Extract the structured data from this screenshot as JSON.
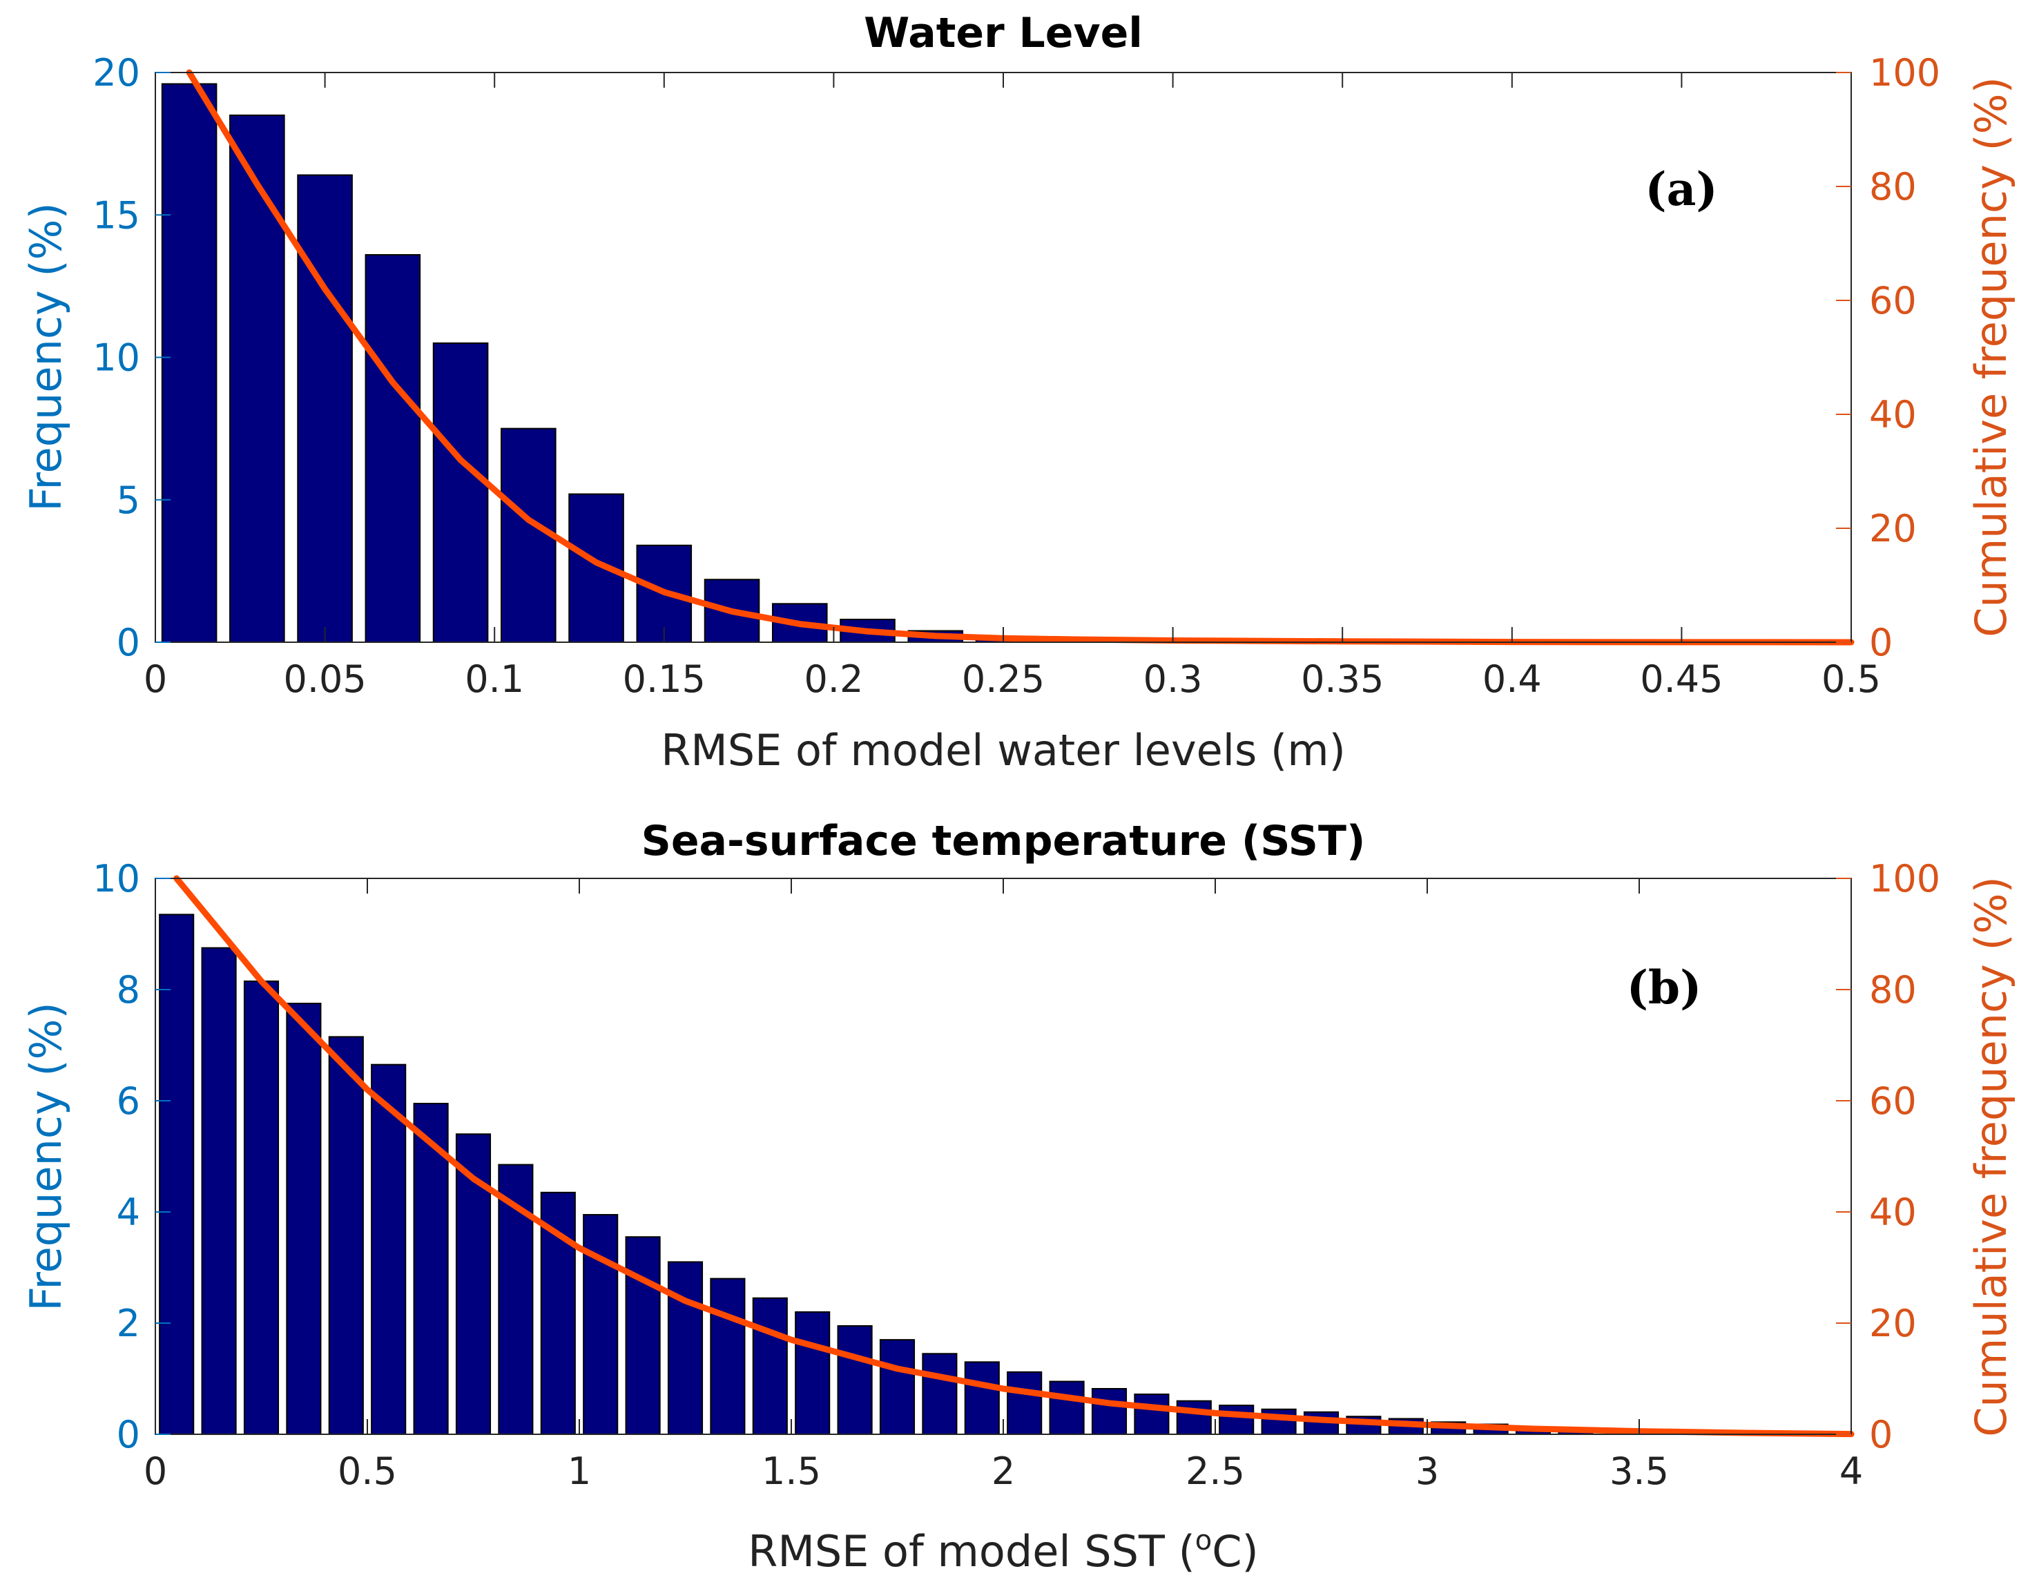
{
  "chart_data": [
    {
      "type": "bar",
      "panel_tag": "(a)",
      "title": "Water Level",
      "xlabel": "RMSE of model water levels (m)",
      "ylabel": "Frequency (%)",
      "y2label": "Cumulative frequency (%)",
      "xlim": [
        0,
        0.5
      ],
      "ylim": [
        0,
        20
      ],
      "y2lim": [
        0,
        100
      ],
      "xticks": [
        "0",
        "0.05",
        "0.1",
        "0.15",
        "0.2",
        "0.25",
        "0.3",
        "0.35",
        "0.4",
        "0.45",
        "0.5"
      ],
      "yticks": [
        "0",
        "5",
        "10",
        "15",
        "20"
      ],
      "y2ticks": [
        "0",
        "20",
        "40",
        "60",
        "80",
        "100"
      ],
      "bin_width": 0.02,
      "x": [
        0.01,
        0.03,
        0.05,
        0.07,
        0.09,
        0.11,
        0.13,
        0.15,
        0.17,
        0.19,
        0.21,
        0.23,
        0.25,
        0.27,
        0.29
      ],
      "values": [
        19.6,
        18.5,
        16.4,
        13.6,
        10.5,
        7.5,
        5.2,
        3.4,
        2.2,
        1.35,
        0.8,
        0.4,
        0.2,
        0.1,
        0.05
      ],
      "series": [
        {
          "name": "Cumulative frequency",
          "axis": "right",
          "x": [
            0.01,
            0.03,
            0.05,
            0.07,
            0.09,
            0.11,
            0.13,
            0.15,
            0.17,
            0.19,
            0.21,
            0.23,
            0.25,
            0.27,
            0.3,
            0.35,
            0.4,
            0.45,
            0.5
          ],
          "values": [
            100,
            80.4,
            62.0,
            45.6,
            32.0,
            21.5,
            14.0,
            8.8,
            5.4,
            3.2,
            1.9,
            1.1,
            0.7,
            0.5,
            0.3,
            0.15,
            0.05,
            0.02,
            0
          ]
        }
      ],
      "colors": {
        "bars": "#00007F",
        "line": "#FF4A00",
        "left_axis": "#0072BD",
        "right_axis": "#D95319"
      }
    },
    {
      "type": "bar",
      "panel_tag": "(b)",
      "title": "Sea-surface temperature (SST)",
      "xlabel": "RMSE of model SST (",
      "xlabel_sup": "o",
      "xlabel_tail": "C)",
      "ylabel": "Frequency (%)",
      "y2label": "Cumulative frequency (%)",
      "xlim": [
        0,
        4
      ],
      "ylim": [
        0,
        10
      ],
      "y2lim": [
        0,
        100
      ],
      "xticks": [
        "0",
        "0.5",
        "1",
        "1.5",
        "2",
        "2.5",
        "3",
        "3.5",
        "4"
      ],
      "yticks": [
        "0",
        "2",
        "4",
        "6",
        "8",
        "10"
      ],
      "y2ticks": [
        "0",
        "20",
        "40",
        "60",
        "80",
        "100"
      ],
      "bin_width": 0.1,
      "x": [
        0.05,
        0.15,
        0.25,
        0.35,
        0.45,
        0.55,
        0.65,
        0.75,
        0.85,
        0.95,
        1.05,
        1.15,
        1.25,
        1.35,
        1.45,
        1.55,
        1.65,
        1.75,
        1.85,
        1.95,
        2.05,
        2.15,
        2.25,
        2.35,
        2.45,
        2.55,
        2.65,
        2.75,
        2.85,
        2.95,
        3.05,
        3.15,
        3.25,
        3.35
      ],
      "values": [
        9.35,
        8.75,
        8.15,
        7.75,
        7.15,
        6.65,
        5.95,
        5.4,
        4.85,
        4.35,
        3.95,
        3.55,
        3.1,
        2.8,
        2.45,
        2.2,
        1.95,
        1.7,
        1.45,
        1.3,
        1.12,
        0.95,
        0.82,
        0.72,
        0.6,
        0.52,
        0.45,
        0.4,
        0.32,
        0.28,
        0.22,
        0.18,
        0.12,
        0.08
      ],
      "series": [
        {
          "name": "Cumulative frequency",
          "axis": "right",
          "x": [
            0.05,
            0.25,
            0.5,
            0.75,
            1.0,
            1.25,
            1.5,
            1.75,
            2.0,
            2.25,
            2.5,
            2.75,
            3.0,
            3.25,
            3.5,
            3.75,
            4.0
          ],
          "values": [
            100,
            81.5,
            62.0,
            46.0,
            33.5,
            24.0,
            17.0,
            11.8,
            8.2,
            5.6,
            3.8,
            2.6,
            1.7,
            1.0,
            0.55,
            0.25,
            0.05
          ]
        }
      ],
      "colors": {
        "bars": "#00007F",
        "line": "#FF4A00",
        "left_axis": "#0072BD",
        "right_axis": "#D95319"
      }
    }
  ]
}
